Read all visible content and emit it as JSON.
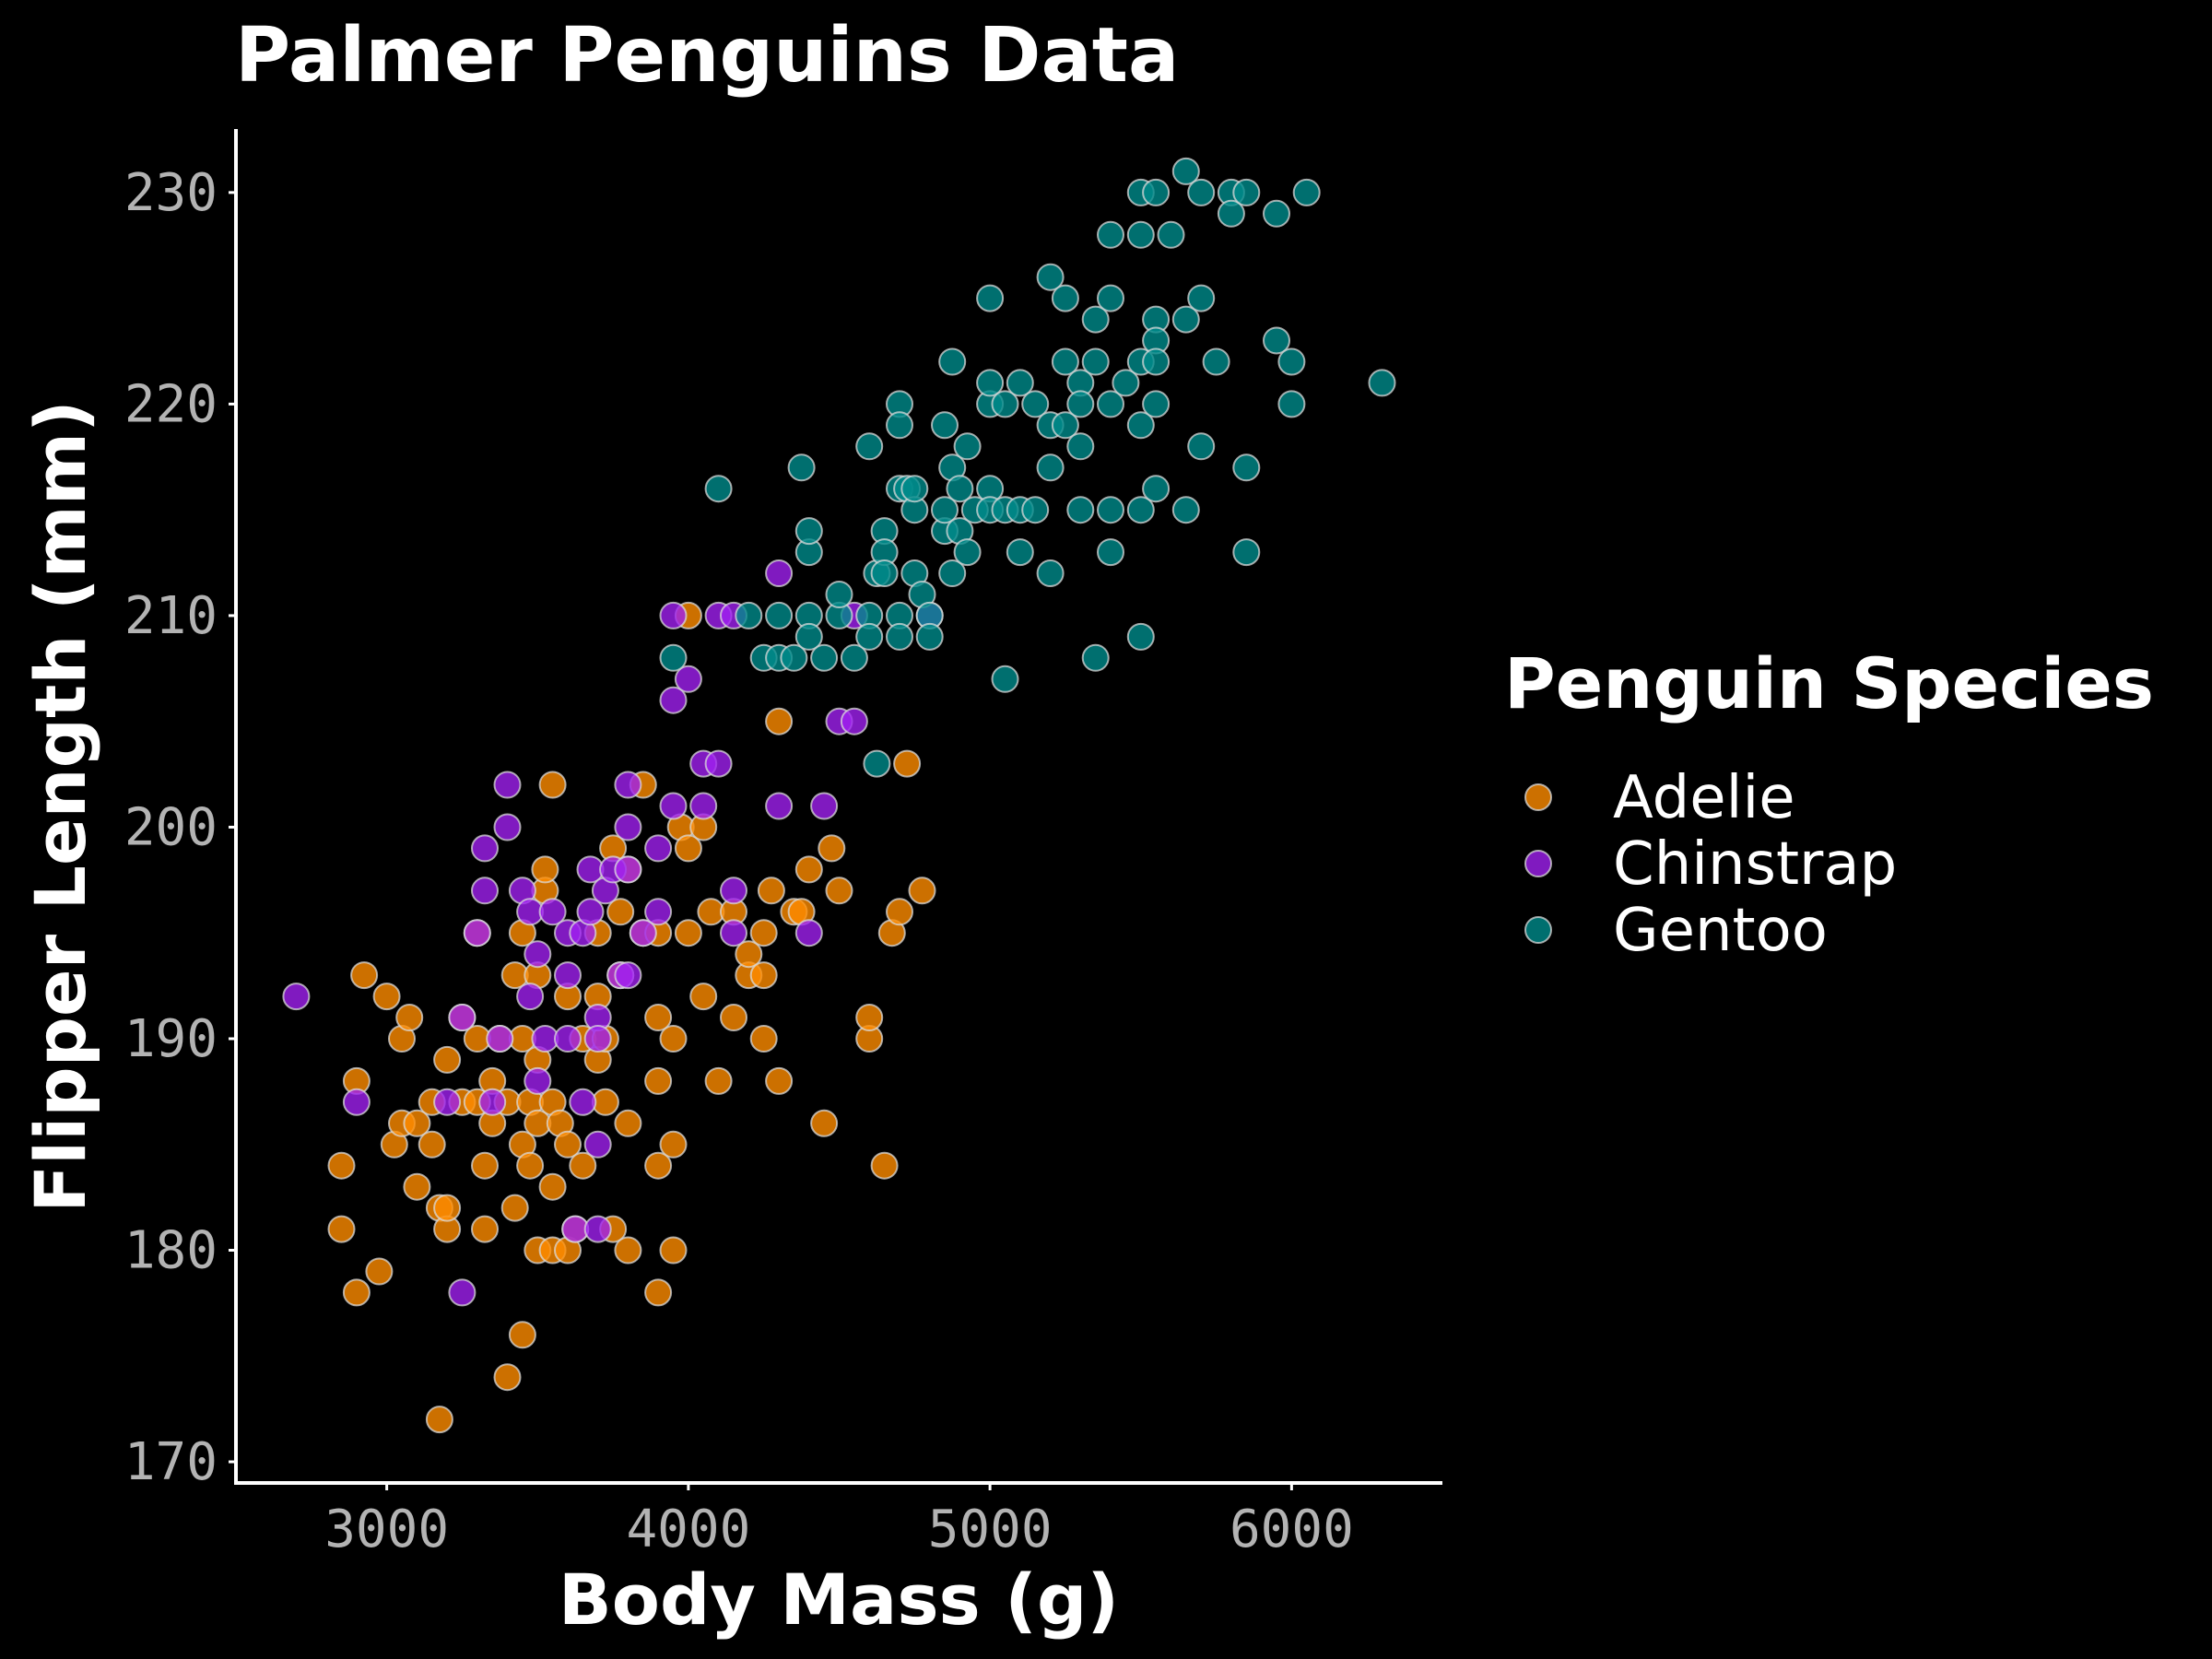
{
  "colors": {
    "background": "#000000",
    "axis": "#ffffff",
    "tick_text": "#b3b3b3",
    "text": "#ffffff",
    "point_stroke": "#d9d9d9"
  },
  "chart_data": {
    "type": "scatter",
    "title": "Palmer Penguins Data",
    "xlabel": "Body Mass (g)",
    "ylabel": "Flipper Length (mm)",
    "xlim": [
      2500,
      6500
    ],
    "ylim": [
      169,
      233
    ],
    "xticks": [
      3000,
      4000,
      5000,
      6000
    ],
    "yticks": [
      170,
      180,
      190,
      200,
      210,
      220,
      230
    ],
    "grid": false,
    "legend": {
      "title": "Penguin Species",
      "position": "right"
    },
    "series": [
      {
        "name": "Adelie",
        "color": "#ff8c00",
        "points": [
          [
            2850,
            181
          ],
          [
            2850,
            184
          ],
          [
            2900,
            178
          ],
          [
            2900,
            188
          ],
          [
            2925,
            193
          ],
          [
            2975,
            179
          ],
          [
            3000,
            192
          ],
          [
            3025,
            185
          ],
          [
            3050,
            186
          ],
          [
            3050,
            190
          ],
          [
            3075,
            191
          ],
          [
            3100,
            183
          ],
          [
            3100,
            186
          ],
          [
            3150,
            187
          ],
          [
            3150,
            185
          ],
          [
            3175,
            182
          ],
          [
            3175,
            172
          ],
          [
            3200,
            181
          ],
          [
            3200,
            182
          ],
          [
            3200,
            189
          ],
          [
            3250,
            187
          ],
          [
            3250,
            191
          ],
          [
            3300,
            195
          ],
          [
            3300,
            187
          ],
          [
            3325,
            181
          ],
          [
            3325,
            184
          ],
          [
            3350,
            186
          ],
          [
            3350,
            188
          ],
          [
            3375,
            190
          ],
          [
            3400,
            174
          ],
          [
            3400,
            187
          ],
          [
            3425,
            182
          ],
          [
            3425,
            193
          ],
          [
            3450,
            176
          ],
          [
            3450,
            185
          ],
          [
            3450,
            190
          ],
          [
            3475,
            184
          ],
          [
            3475,
            187
          ],
          [
            3500,
            180
          ],
          [
            3500,
            186
          ],
          [
            3500,
            189
          ],
          [
            3500,
            193
          ],
          [
            3525,
            197
          ],
          [
            3525,
            198
          ],
          [
            3550,
            180
          ],
          [
            3550,
            183
          ],
          [
            3550,
            187
          ],
          [
            3550,
            202
          ],
          [
            3575,
            186
          ],
          [
            3600,
            180
          ],
          [
            3600,
            185
          ],
          [
            3625,
            181
          ],
          [
            3650,
            184
          ],
          [
            3650,
            190
          ],
          [
            3700,
            189
          ],
          [
            3700,
            192
          ],
          [
            3700,
            195
          ],
          [
            3725,
            187
          ],
          [
            3725,
            190
          ],
          [
            3750,
            181
          ],
          [
            3750,
            199
          ],
          [
            3775,
            193
          ],
          [
            3775,
            196
          ],
          [
            3800,
            180
          ],
          [
            3800,
            186
          ],
          [
            3800,
            198
          ],
          [
            3850,
            195
          ],
          [
            3850,
            202
          ],
          [
            3900,
            178
          ],
          [
            3900,
            184
          ],
          [
            3900,
            191
          ],
          [
            3900,
            195
          ],
          [
            3950,
            180
          ],
          [
            3950,
            185
          ],
          [
            3950,
            190
          ],
          [
            3975,
            200
          ],
          [
            4000,
            195
          ],
          [
            4000,
            199
          ],
          [
            4000,
            210
          ],
          [
            4050,
            192
          ],
          [
            4050,
            200
          ],
          [
            4075,
            196
          ],
          [
            4100,
            188
          ],
          [
            4150,
            191
          ],
          [
            4150,
            196
          ],
          [
            4200,
            193
          ],
          [
            4200,
            194
          ],
          [
            4250,
            190
          ],
          [
            4250,
            193
          ],
          [
            4250,
            195
          ],
          [
            4275,
            197
          ],
          [
            4300,
            188
          ],
          [
            4300,
            205
          ],
          [
            4350,
            196
          ],
          [
            4375,
            196
          ],
          [
            4400,
            198
          ],
          [
            4450,
            186
          ],
          [
            4475,
            199
          ],
          [
            4500,
            197
          ],
          [
            4600,
            190
          ],
          [
            4600,
            191
          ],
          [
            4650,
            184
          ],
          [
            4675,
            195
          ],
          [
            4700,
            196
          ],
          [
            4725,
            203
          ],
          [
            4775,
            197
          ],
          [
            3300,
            190
          ],
          [
            3600,
            192
          ],
          [
            3450,
            195
          ],
          [
            3900,
            188
          ]
        ]
      },
      {
        "name": "Chinstrap",
        "color": "#a020f0",
        "points": [
          [
            2700,
            192
          ],
          [
            2900,
            187
          ],
          [
            3200,
            187
          ],
          [
            3250,
            178
          ],
          [
            3250,
            191
          ],
          [
            3300,
            195
          ],
          [
            3325,
            197
          ],
          [
            3325,
            199
          ],
          [
            3350,
            187
          ],
          [
            3375,
            190
          ],
          [
            3400,
            200
          ],
          [
            3400,
            202
          ],
          [
            3450,
            197
          ],
          [
            3475,
            192
          ],
          [
            3475,
            196
          ],
          [
            3500,
            188
          ],
          [
            3500,
            194
          ],
          [
            3525,
            190
          ],
          [
            3550,
            196
          ],
          [
            3600,
            193
          ],
          [
            3600,
            195
          ],
          [
            3625,
            181
          ],
          [
            3650,
            187
          ],
          [
            3650,
            195
          ],
          [
            3675,
            198
          ],
          [
            3675,
            196
          ],
          [
            3700,
            181
          ],
          [
            3700,
            185
          ],
          [
            3700,
            191
          ],
          [
            3725,
            197
          ],
          [
            3750,
            198
          ],
          [
            3775,
            193
          ],
          [
            3800,
            193
          ],
          [
            3800,
            198
          ],
          [
            3800,
            200
          ],
          [
            3800,
            202
          ],
          [
            3850,
            195
          ],
          [
            3900,
            199
          ],
          [
            3900,
            196
          ],
          [
            3950,
            201
          ],
          [
            3950,
            206
          ],
          [
            3950,
            210
          ],
          [
            4000,
            207
          ],
          [
            4050,
            201
          ],
          [
            4050,
            203
          ],
          [
            4100,
            203
          ],
          [
            4100,
            210
          ],
          [
            4150,
            197
          ],
          [
            4150,
            195
          ],
          [
            4300,
            201
          ],
          [
            4300,
            212
          ],
          [
            4450,
            201
          ],
          [
            4500,
            205
          ],
          [
            4550,
            205
          ],
          [
            4400,
            195
          ],
          [
            4150,
            210
          ],
          [
            4800,
            210
          ],
          [
            4550,
            210
          ],
          [
            3700,
            190
          ],
          [
            3600,
            190
          ]
        ]
      },
      {
        "name": "Gentoo",
        "color": "#008b8b",
        "points": [
          [
            3950,
            208
          ],
          [
            4100,
            216
          ],
          [
            4200,
            210
          ],
          [
            4250,
            208
          ],
          [
            4300,
            210
          ],
          [
            4300,
            208
          ],
          [
            4350,
            208
          ],
          [
            4375,
            217
          ],
          [
            4400,
            213
          ],
          [
            4400,
            214
          ],
          [
            4400,
            210
          ],
          [
            4400,
            209
          ],
          [
            4450,
            208
          ],
          [
            4500,
            210
          ],
          [
            4500,
            211
          ],
          [
            4550,
            208
          ],
          [
            4600,
            218
          ],
          [
            4600,
            210
          ],
          [
            4600,
            209
          ],
          [
            4625,
            212
          ],
          [
            4625,
            203
          ],
          [
            4650,
            214
          ],
          [
            4650,
            213
          ],
          [
            4650,
            212
          ],
          [
            4700,
            220
          ],
          [
            4700,
            219
          ],
          [
            4700,
            216
          ],
          [
            4700,
            210
          ],
          [
            4700,
            209
          ],
          [
            4725,
            216
          ],
          [
            4750,
            215
          ],
          [
            4750,
            212
          ],
          [
            4750,
            216
          ],
          [
            4775,
            211
          ],
          [
            4800,
            210
          ],
          [
            4800,
            209
          ],
          [
            4850,
            214
          ],
          [
            4850,
            215
          ],
          [
            4850,
            219
          ],
          [
            4875,
            212
          ],
          [
            4875,
            217
          ],
          [
            4875,
            222
          ],
          [
            4900,
            216
          ],
          [
            4900,
            214
          ],
          [
            4925,
            213
          ],
          [
            4925,
            218
          ],
          [
            4950,
            215
          ],
          [
            5000,
            225
          ],
          [
            5000,
            220
          ],
          [
            5000,
            221
          ],
          [
            5000,
            216
          ],
          [
            5000,
            215
          ],
          [
            5050,
            220
          ],
          [
            5050,
            215
          ],
          [
            5050,
            207
          ],
          [
            5100,
            221
          ],
          [
            5100,
            215
          ],
          [
            5100,
            213
          ],
          [
            5150,
            220
          ],
          [
            5150,
            215
          ],
          [
            5200,
            226
          ],
          [
            5200,
            219
          ],
          [
            5200,
            217
          ],
          [
            5200,
            212
          ],
          [
            5250,
            225
          ],
          [
            5250,
            222
          ],
          [
            5250,
            219
          ],
          [
            5300,
            221
          ],
          [
            5300,
            220
          ],
          [
            5300,
            218
          ],
          [
            5300,
            215
          ],
          [
            5350,
            224
          ],
          [
            5350,
            222
          ],
          [
            5350,
            208
          ],
          [
            5400,
            228
          ],
          [
            5400,
            225
          ],
          [
            5400,
            220
          ],
          [
            5400,
            215
          ],
          [
            5400,
            213
          ],
          [
            5450,
            221
          ],
          [
            5500,
            230
          ],
          [
            5500,
            228
          ],
          [
            5500,
            222
          ],
          [
            5500,
            219
          ],
          [
            5500,
            215
          ],
          [
            5500,
            209
          ],
          [
            5550,
            230
          ],
          [
            5550,
            224
          ],
          [
            5550,
            223
          ],
          [
            5550,
            222
          ],
          [
            5550,
            220
          ],
          [
            5550,
            216
          ],
          [
            5600,
            228
          ],
          [
            5650,
            231
          ],
          [
            5650,
            224
          ],
          [
            5650,
            215
          ],
          [
            5700,
            230
          ],
          [
            5700,
            225
          ],
          [
            5700,
            218
          ],
          [
            5750,
            222
          ],
          [
            5800,
            230
          ],
          [
            5800,
            229
          ],
          [
            5850,
            230
          ],
          [
            5850,
            217
          ],
          [
            5850,
            213
          ],
          [
            5950,
            229
          ],
          [
            5950,
            223
          ],
          [
            6000,
            222
          ],
          [
            6000,
            220
          ],
          [
            6050,
            230
          ],
          [
            6300,
            221
          ]
        ]
      }
    ]
  }
}
